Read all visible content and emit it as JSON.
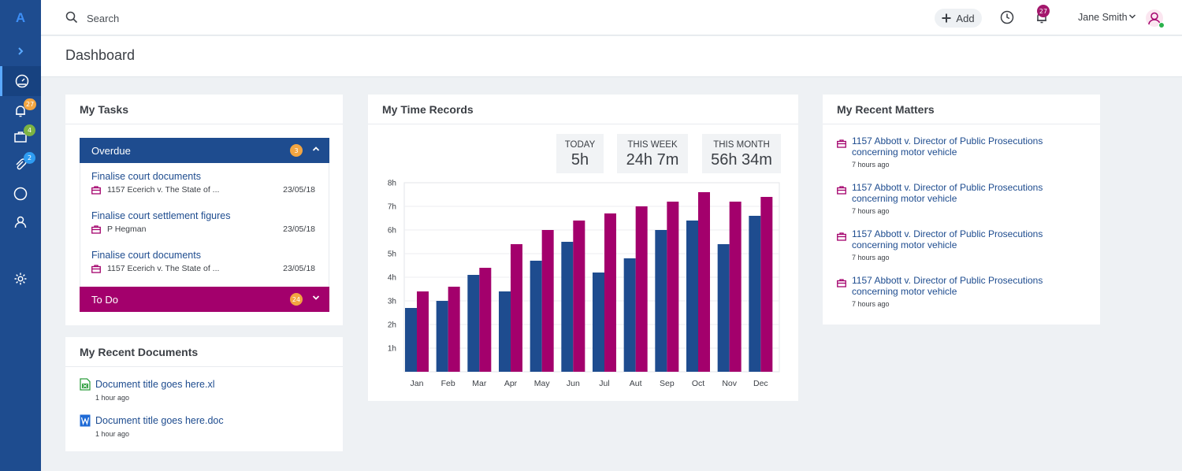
{
  "sidebar": {
    "logo": "A",
    "badges": {
      "notifications": "27",
      "matters": "4",
      "attachments": "2"
    },
    "badge_colors": {
      "notifications": "#f2a541",
      "matters": "#7cb342",
      "attachments": "#2e9cf2"
    }
  },
  "topbar": {
    "search_placeholder": "Search",
    "add_label": "Add",
    "notification_count": "27",
    "user_name": "Jane Smith"
  },
  "page": {
    "title": "Dashboard"
  },
  "tasks": {
    "title": "My Tasks",
    "overdue": {
      "label": "Overdue",
      "count": "3",
      "items": [
        {
          "title": "Finalise court documents",
          "matter": "1157 Ecerich v. The State of ...",
          "date": "23/05/18"
        },
        {
          "title": "Finalise court settlement figures",
          "matter": "P Hegman",
          "date": "23/05/18"
        },
        {
          "title": "Finalise court documents",
          "matter": "1157 Ecerich v. The State of ...",
          "date": "23/05/18"
        }
      ]
    },
    "todo": {
      "label": "To Do",
      "count": "24"
    }
  },
  "documents": {
    "title": "My Recent Documents",
    "items": [
      {
        "title": "Document title goes here.xl",
        "time": "1 hour ago",
        "icon": "excel-file-icon"
      },
      {
        "title": "Document title goes here.doc",
        "time": "1 hour ago",
        "icon": "word-file-icon"
      }
    ]
  },
  "time_records": {
    "title": "My Time Records",
    "stats": [
      {
        "label": "TODAY",
        "value": "5h"
      },
      {
        "label": "THIS WEEK",
        "value": "24h 7m"
      },
      {
        "label": "THIS MONTH",
        "value": "56h 34m"
      }
    ]
  },
  "chart_data": {
    "type": "bar",
    "categories": [
      "Jan",
      "Feb",
      "Mar",
      "Apr",
      "May",
      "Jun",
      "Jul",
      "Aut",
      "Sep",
      "Oct",
      "Nov",
      "Dec"
    ],
    "series": [
      {
        "color": "#1e4c8f",
        "values": [
          2.7,
          3.0,
          4.1,
          3.4,
          4.7,
          5.5,
          4.2,
          4.8,
          6.0,
          6.4,
          5.4,
          6.6
        ]
      },
      {
        "color": "#a3006c",
        "values": [
          3.4,
          3.6,
          4.4,
          5.4,
          6.0,
          6.4,
          6.7,
          7.0,
          7.2,
          7.6,
          7.2,
          7.4
        ]
      }
    ],
    "y_ticks": [
      "1h",
      "2h",
      "3h",
      "4h",
      "5h",
      "6h",
      "7h",
      "8h"
    ],
    "ylim": [
      0,
      8
    ],
    "grid": true,
    "legend": "none"
  },
  "matters": {
    "title": "My Recent Matters",
    "items": [
      {
        "title": "1157 Abbott v. Director of Public Prosecutions concerning motor vehicle",
        "time": "7 hours ago"
      },
      {
        "title": "1157 Abbott v. Director of Public Prosecutions concerning motor vehicle",
        "time": "7 hours ago"
      },
      {
        "title": "1157 Abbott v. Director of Public Prosecutions concerning motor vehicle",
        "time": "7 hours ago"
      },
      {
        "title": "1157 Abbott v. Director of Public Prosecutions concerning motor vehicle",
        "time": "7 hours ago"
      }
    ]
  },
  "colors": {
    "primary": "#1e4c8f",
    "accent": "#a3006c",
    "overdue_badge": "#f2a541"
  }
}
